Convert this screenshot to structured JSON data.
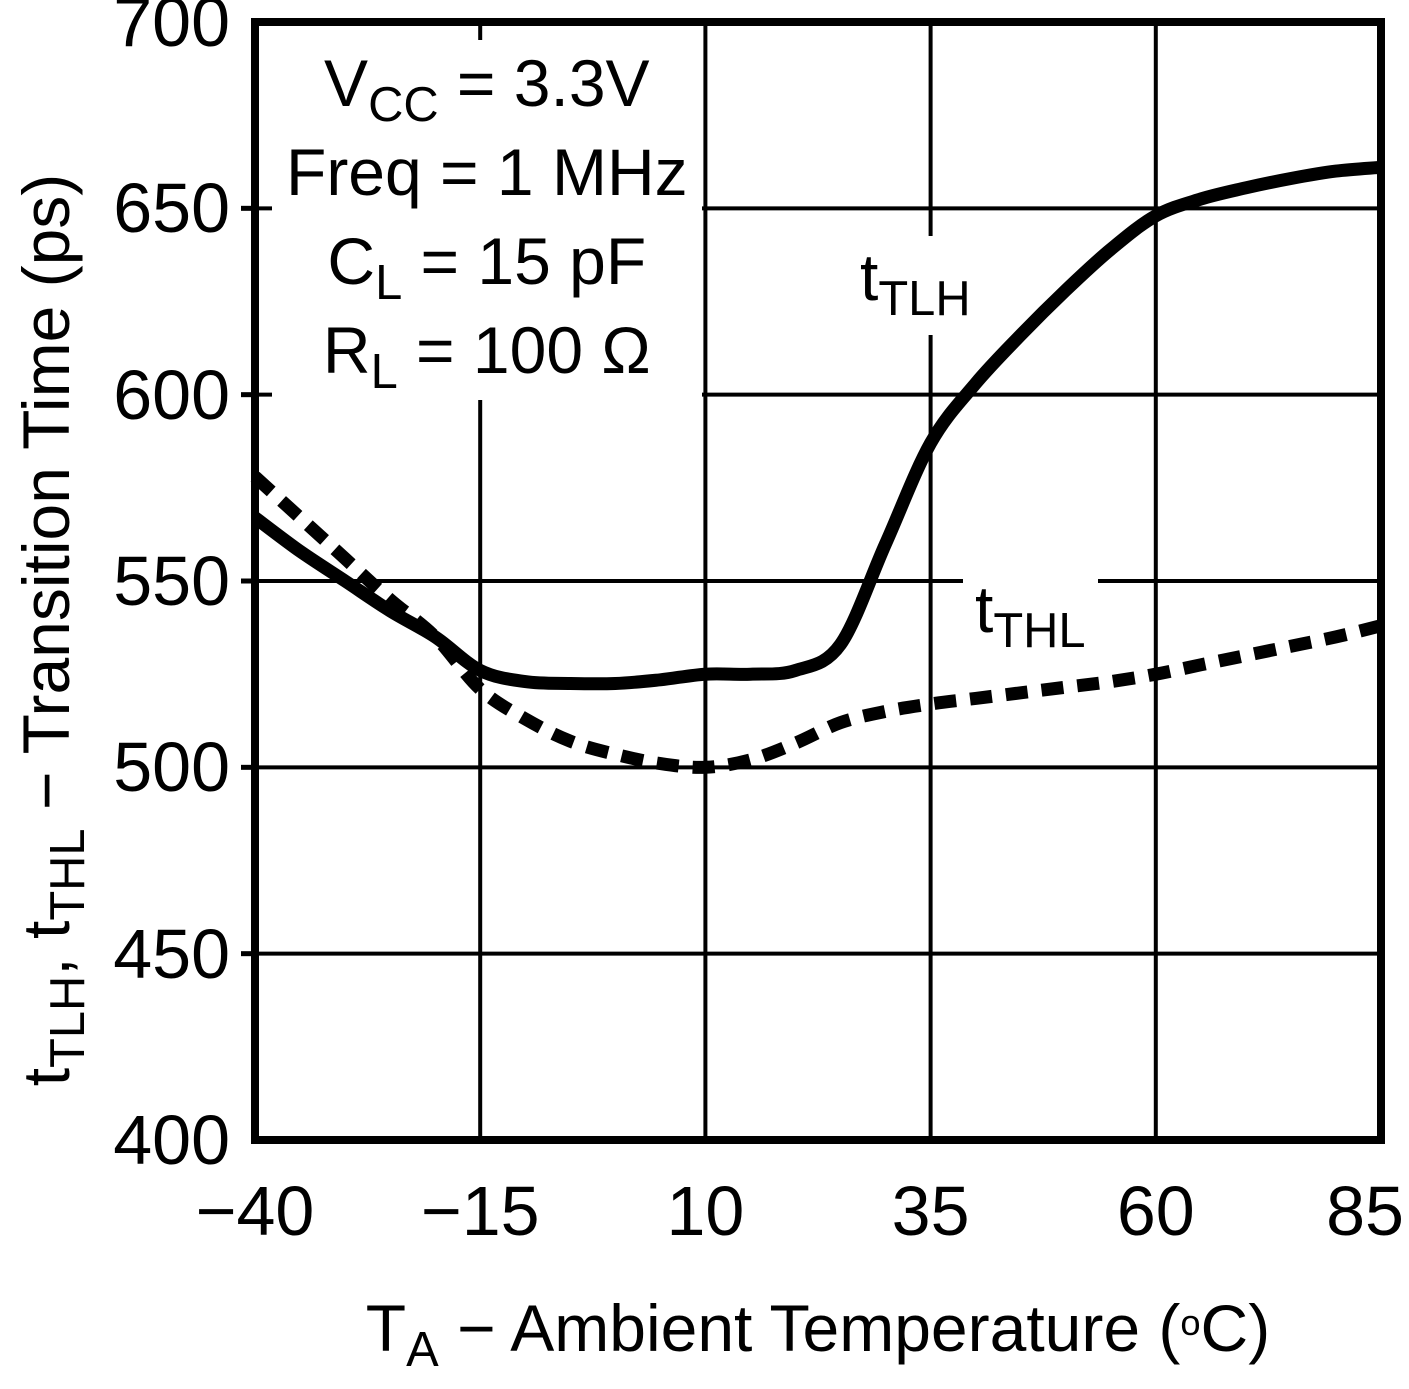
{
  "figure": {
    "background": "#ffffff",
    "ink": "#000000"
  },
  "conditions": [
    {
      "pre": "V",
      "sub": "CC",
      "post": " = 3.3V"
    },
    {
      "pre": "Freq",
      "sub": "",
      "post": " = 1 MHz"
    },
    {
      "pre": "C",
      "sub": "L",
      "post": " = 15 pF"
    },
    {
      "pre": "R",
      "sub": "L",
      "post": " = 100 Ω"
    }
  ],
  "series_labels": {
    "tlh": {
      "pre": "t",
      "sub": "TLH"
    },
    "thl": {
      "pre": "t",
      "sub": "THL"
    }
  },
  "axes": {
    "x_title": {
      "pre": "T",
      "sub": "A",
      "mid": " − Ambient Temperature (",
      "sup": "o",
      "post": "C)"
    },
    "y_title": {
      "p1": "t",
      "s1": "TLH",
      "p2": ", t",
      "s2": "THL",
      "p3": " − Transition Time (ps)"
    }
  },
  "chart_data": {
    "type": "line",
    "title": "",
    "xlabel": "T_A - Ambient Temperature (°C)",
    "ylabel": "t_TLH, t_THL - Transition Time (ps)",
    "xlim": [
      -40,
      85
    ],
    "ylim": [
      400,
      700
    ],
    "xticks": [
      -40,
      -15,
      10,
      35,
      60,
      85
    ],
    "yticks": [
      400,
      450,
      500,
      550,
      600,
      650,
      700
    ],
    "grid": true,
    "x": [
      -40,
      -35,
      -30,
      -25,
      -20,
      -15,
      -10,
      -5,
      0,
      5,
      10,
      15,
      20,
      25,
      30,
      35,
      40,
      45,
      50,
      55,
      60,
      65,
      70,
      75,
      80,
      85
    ],
    "series": [
      {
        "name": "t_TLH",
        "style": "solid",
        "values": [
          567,
          558,
          550,
          542,
          535,
          526,
          523,
          522.5,
          522.5,
          523.5,
          525,
          525,
          526,
          533,
          560,
          587,
          603,
          616,
          628,
          639,
          648,
          652.5,
          655.5,
          658,
          660,
          661
        ]
      },
      {
        "name": "t_THL",
        "style": "dashed",
        "values": [
          578,
          567,
          556,
          545,
          535,
          521,
          513,
          507,
          503.5,
          501,
          500,
          502,
          506.5,
          512,
          515,
          517,
          518.5,
          520,
          521.5,
          523,
          525,
          527.5,
          530,
          532.5,
          535,
          538
        ]
      }
    ]
  }
}
